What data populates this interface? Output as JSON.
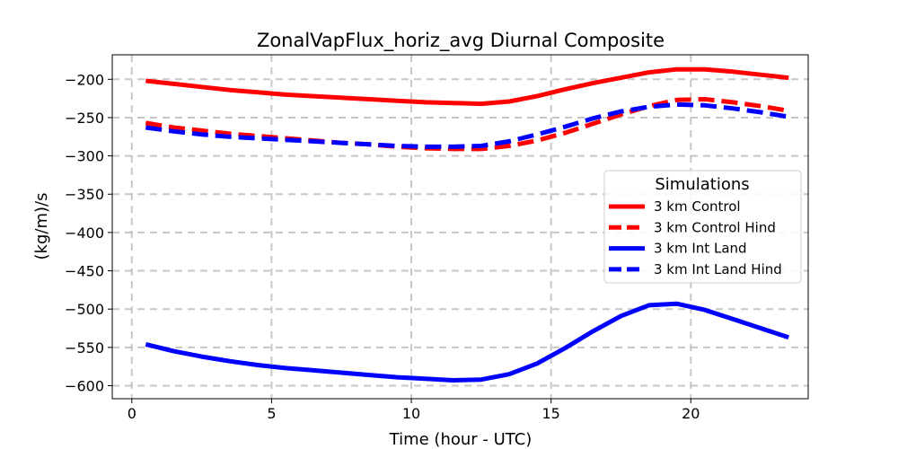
{
  "chart_data": {
    "type": "line",
    "title": "ZonalVapFlux_horiz_avg Diurnal Composite",
    "xlabel": "Time (hour - UTC)",
    "ylabel": "(kg/m)/s",
    "xlim": [
      -0.7,
      24.2
    ],
    "ylim": [
      -617,
      -168
    ],
    "xticks": [
      0,
      5,
      10,
      15,
      20
    ],
    "yticks": [
      -200,
      -250,
      -300,
      -350,
      -400,
      -450,
      -500,
      -550,
      -600
    ],
    "xtick_labels": [
      "0",
      "5",
      "10",
      "15",
      "20"
    ],
    "ytick_labels": [
      "−200",
      "−250",
      "−300",
      "−350",
      "−400",
      "−450",
      "−500",
      "−550",
      "−600"
    ],
    "grid": true,
    "legend": {
      "title": "Simulations",
      "placement": "center-right"
    },
    "x": [
      0.5,
      1.5,
      2.5,
      3.5,
      4.5,
      5.5,
      6.5,
      7.5,
      8.5,
      9.5,
      10.5,
      11.5,
      12.5,
      13.5,
      14.5,
      15.5,
      16.5,
      17.5,
      18.5,
      19.5,
      20.5,
      21.5,
      22.5,
      23.5
    ],
    "series": [
      {
        "name": "3 km Control",
        "color": "#ff0000",
        "dashed": false,
        "values": [
          -202,
          -206,
          -210,
          -214,
          -217,
          -220,
          -222,
          -224,
          -226,
          -228,
          -230,
          -231,
          -232,
          -229,
          -222,
          -213,
          -205,
          -198,
          -191,
          -187,
          -187,
          -190,
          -194,
          -198
        ]
      },
      {
        "name": "3 km Control Hind",
        "color": "#ff0000",
        "dashed": true,
        "values": [
          -257,
          -263,
          -267,
          -271,
          -274,
          -277,
          -280,
          -283,
          -285,
          -288,
          -290,
          -291,
          -291,
          -287,
          -280,
          -270,
          -258,
          -246,
          -235,
          -227,
          -226,
          -230,
          -235,
          -241
        ]
      },
      {
        "name": "3 km Int Land",
        "color": "#0000ff",
        "dashed": false,
        "values": [
          -546,
          -555,
          -562,
          -568,
          -573,
          -577,
          -580,
          -583,
          -586,
          -589,
          -591,
          -593,
          -592,
          -585,
          -571,
          -551,
          -529,
          -509,
          -495,
          -493,
          -501,
          -513,
          -525,
          -537
        ]
      },
      {
        "name": "3 km Int Land Hind",
        "color": "#0000ff",
        "dashed": true,
        "values": [
          -263,
          -268,
          -272,
          -275,
          -277,
          -279,
          -281,
          -283,
          -285,
          -287,
          -288,
          -288,
          -287,
          -281,
          -272,
          -262,
          -251,
          -242,
          -236,
          -233,
          -234,
          -238,
          -243,
          -249
        ]
      }
    ]
  }
}
